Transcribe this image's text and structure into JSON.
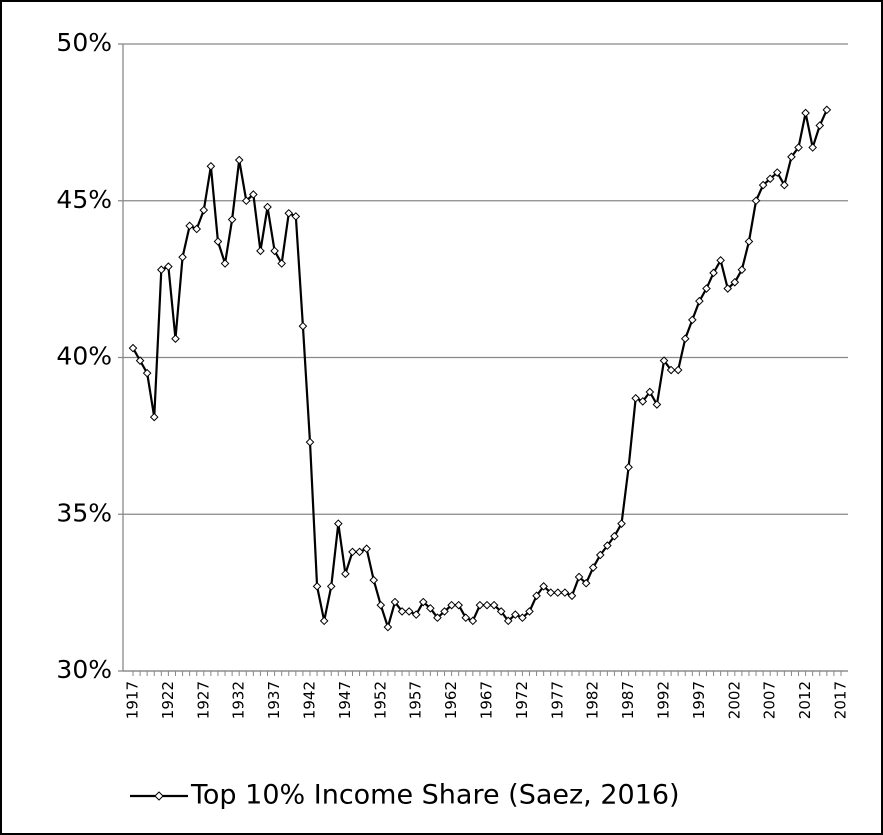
{
  "chart_data": {
    "type": "line",
    "categories": [
      "1917",
      null,
      null,
      null,
      null,
      "1922",
      null,
      null,
      null,
      null,
      "1927",
      null,
      null,
      null,
      null,
      "1932",
      null,
      null,
      null,
      null,
      "1937",
      null,
      null,
      null,
      null,
      "1942",
      null,
      null,
      null,
      null,
      "1947",
      null,
      null,
      null,
      null,
      "1952",
      null,
      null,
      null,
      null,
      "1957",
      null,
      null,
      null,
      null,
      "1962",
      null,
      null,
      null,
      null,
      "1967",
      null,
      null,
      null,
      null,
      "1972",
      null,
      null,
      null,
      null,
      "1977",
      null,
      null,
      null,
      null,
      "1982",
      null,
      null,
      null,
      null,
      "1987",
      null,
      null,
      null,
      null,
      "1992",
      null,
      null,
      null,
      null,
      "1997",
      null,
      null,
      null,
      null,
      "2002",
      null,
      null,
      null,
      null,
      "2007",
      null,
      null,
      null,
      null,
      "2012",
      null,
      null,
      null,
      null,
      "2017"
    ],
    "series": [
      {
        "name": "Top 10% Income Share (Saez, 2016)",
        "color": "#000000",
        "values": [
          40.3,
          39.9,
          39.5,
          38.1,
          42.8,
          42.9,
          40.6,
          43.2,
          44.2,
          44.1,
          44.7,
          46.1,
          43.7,
          43.0,
          44.4,
          46.3,
          45.0,
          45.2,
          43.4,
          44.8,
          43.4,
          43.0,
          44.6,
          44.5,
          41.0,
          37.3,
          32.7,
          31.6,
          32.7,
          34.7,
          33.1,
          33.8,
          33.8,
          33.9,
          32.9,
          32.1,
          31.4,
          32.2,
          31.9,
          31.9,
          31.8,
          32.2,
          32.0,
          31.7,
          31.9,
          32.1,
          32.1,
          31.7,
          31.6,
          32.1,
          32.1,
          32.1,
          31.9,
          31.6,
          31.8,
          31.7,
          31.9,
          32.4,
          32.7,
          32.5,
          32.5,
          32.5,
          32.4,
          33.0,
          32.8,
          33.3,
          33.7,
          34.0,
          34.3,
          34.7,
          36.5,
          38.7,
          38.6,
          38.9,
          38.5,
          39.9,
          39.6,
          39.6,
          40.6,
          41.2,
          41.8,
          42.2,
          42.7,
          43.1,
          42.2,
          42.4,
          42.8,
          43.7,
          45.0,
          45.5,
          45.7,
          45.9,
          45.5,
          46.4,
          46.7,
          47.8,
          46.7,
          47.4,
          47.9,
          null,
          null
        ]
      }
    ],
    "ylim": [
      30,
      50
    ],
    "yticks": [
      {
        "value": 30,
        "label": "30%"
      },
      {
        "value": 35,
        "label": "35%"
      },
      {
        "value": 40,
        "label": "40%"
      },
      {
        "value": 45,
        "label": "45%"
      },
      {
        "value": 50,
        "label": "50%"
      }
    ],
    "grid": true,
    "legend": "bottom"
  }
}
